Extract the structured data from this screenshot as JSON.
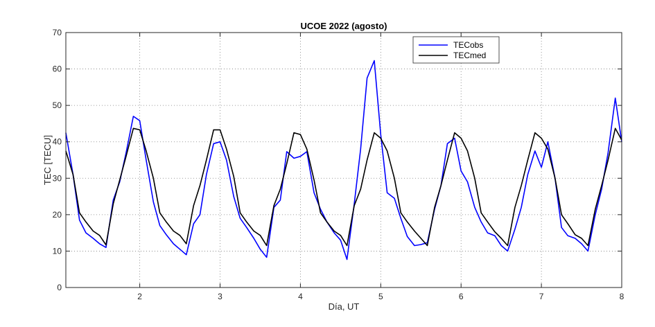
{
  "chart_data": {
    "type": "line",
    "title": "UCOE 2022 (agosto)",
    "xlabel": "Día, UT",
    "ylabel": "TEC [TECU]",
    "xlim": [
      1.08,
      8
    ],
    "ylim": [
      0,
      70
    ],
    "xticks": [
      2,
      3,
      4,
      5,
      6,
      7,
      8
    ],
    "yticks": [
      0,
      10,
      20,
      30,
      40,
      50,
      60,
      70
    ],
    "grid": true,
    "legend_position": "top-right",
    "series": [
      {
        "name": "TECobs",
        "color": "#0000ff",
        "x": [
          1.08,
          1.17,
          1.25,
          1.33,
          1.42,
          1.5,
          1.58,
          1.67,
          1.75,
          1.83,
          1.92,
          2.0,
          2.08,
          2.17,
          2.25,
          2.33,
          2.42,
          2.5,
          2.58,
          2.67,
          2.75,
          2.83,
          2.92,
          3.0,
          3.08,
          3.17,
          3.25,
          3.33,
          3.42,
          3.5,
          3.58,
          3.67,
          3.75,
          3.83,
          3.92,
          4.0,
          4.08,
          4.17,
          4.25,
          4.33,
          4.42,
          4.5,
          4.58,
          4.67,
          4.75,
          4.83,
          4.92,
          5.0,
          5.08,
          5.17,
          5.25,
          5.33,
          5.42,
          5.5,
          5.58,
          5.67,
          5.75,
          5.83,
          5.92,
          6.0,
          6.08,
          6.17,
          6.25,
          6.33,
          6.42,
          6.5,
          6.58,
          6.67,
          6.75,
          6.83,
          6.92,
          7.0,
          7.08,
          7.17,
          7.25,
          7.33,
          7.42,
          7.5,
          7.58,
          7.67,
          7.75,
          7.83,
          7.92,
          8.0
        ],
        "y": [
          42.5,
          31,
          18.5,
          15,
          13.5,
          12,
          11,
          24,
          29,
          37,
          47,
          45.8,
          35,
          23.5,
          17,
          14.5,
          12,
          10.5,
          9,
          17.5,
          20,
          31,
          39.5,
          40,
          35,
          25,
          19,
          16.5,
          13.5,
          10.5,
          8.3,
          22,
          24,
          37.3,
          35.5,
          36,
          37.3,
          26,
          21.5,
          18,
          15,
          13,
          7.7,
          23,
          38,
          57.5,
          62.3,
          42,
          26,
          24.5,
          19,
          14,
          11.5,
          11.8,
          12.3,
          21.5,
          28,
          39.5,
          41,
          32,
          29,
          22,
          18,
          15,
          14.2,
          11.5,
          10,
          16,
          22,
          31,
          37.5,
          33,
          40,
          30,
          16.5,
          14.2,
          13.5,
          12,
          10,
          20,
          27,
          37,
          52,
          40
        ]
      },
      {
        "name": "TECmed",
        "color": "#000000",
        "x": [
          1.08,
          1.17,
          1.25,
          1.33,
          1.42,
          1.5,
          1.58,
          1.67,
          1.75,
          1.83,
          1.92,
          2.0,
          2.08,
          2.17,
          2.25,
          2.33,
          2.42,
          2.5,
          2.58,
          2.67,
          2.75,
          2.83,
          2.92,
          3.0,
          3.08,
          3.17,
          3.25,
          3.33,
          3.42,
          3.5,
          3.58,
          3.67,
          3.75,
          3.83,
          3.92,
          4.0,
          4.08,
          4.17,
          4.25,
          4.33,
          4.42,
          4.5,
          4.58,
          4.67,
          4.75,
          4.83,
          4.92,
          5.0,
          5.08,
          5.17,
          5.25,
          5.33,
          5.42,
          5.5,
          5.58,
          5.67,
          5.75,
          5.83,
          5.92,
          6.0,
          6.08,
          6.17,
          6.25,
          6.33,
          6.42,
          6.5,
          6.58,
          6.67,
          6.75,
          6.83,
          6.92,
          7.0,
          7.08,
          7.17,
          7.25,
          7.33,
          7.42,
          7.5,
          7.58,
          7.67,
          7.75,
          7.83,
          7.92,
          8.0
        ],
        "y": [
          37.5,
          31,
          20.5,
          18,
          15.5,
          14.3,
          11.7,
          23,
          29.5,
          36,
          43.7,
          43.3,
          37.5,
          30,
          20.5,
          18,
          15.5,
          14.3,
          12,
          22.5,
          28,
          35,
          43.3,
          43.3,
          38,
          30.5,
          20.5,
          18,
          15.5,
          14.3,
          11.5,
          22.5,
          27,
          34,
          42.5,
          42,
          38,
          29.5,
          20.5,
          18,
          15.5,
          14.3,
          11.5,
          22.5,
          27,
          35,
          42.5,
          41,
          37.5,
          30,
          20.5,
          18,
          15.5,
          13.5,
          11.5,
          22,
          28,
          35,
          42.5,
          41,
          37.5,
          30,
          20.5,
          18,
          15.3,
          13.5,
          11.5,
          22,
          28,
          35,
          42.5,
          41,
          38,
          30,
          20,
          17.5,
          14.5,
          13.5,
          11.5,
          21.5,
          28,
          35,
          43.7,
          40.5
        ]
      }
    ]
  }
}
